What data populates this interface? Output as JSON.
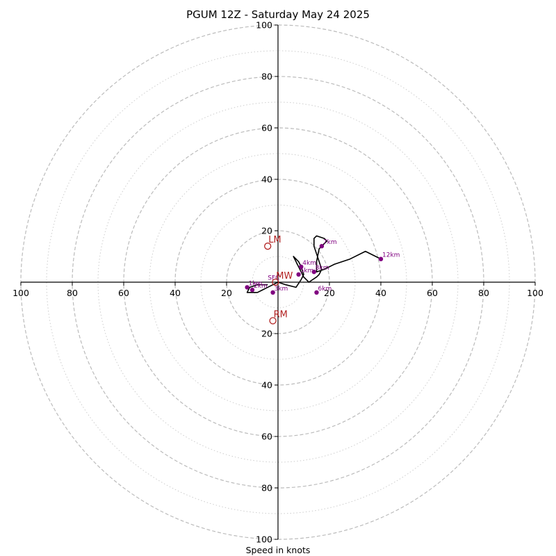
{
  "chart_data": {
    "type": "line",
    "title": "PGUM 12Z - Saturday May 24 2025",
    "xlabel": "Speed in knots",
    "axis_range": [
      -100,
      100
    ],
    "ring_major": [
      20,
      40,
      60,
      80,
      100
    ],
    "ring_minor": [
      10,
      30,
      50,
      70,
      90
    ],
    "tick_labels_x": [
      "100",
      "80",
      "60",
      "40",
      "20",
      "20",
      "40",
      "60",
      "80",
      "100"
    ],
    "tick_values_x": [
      -100,
      -80,
      -60,
      -40,
      -20,
      20,
      40,
      60,
      80,
      100
    ],
    "tick_labels_y": [
      "100",
      "80",
      "60",
      "40",
      "20",
      "20",
      "40",
      "60",
      "80",
      "100"
    ],
    "tick_values_y": [
      100,
      80,
      60,
      40,
      20,
      -20,
      -40,
      -60,
      -80,
      -100
    ],
    "hodograph": {
      "u": [
        -4,
        -8,
        -11,
        -12,
        -8,
        -6,
        -2,
        0,
        3,
        7,
        9,
        10,
        9,
        8,
        7,
        6,
        7,
        8,
        9,
        10,
        12,
        15,
        16,
        17,
        16,
        15,
        14,
        14,
        15,
        18,
        19,
        16,
        15,
        15,
        18,
        22,
        28,
        34,
        38,
        40
      ],
      "v": [
        -1,
        -1,
        -2,
        -4,
        -4,
        -3,
        -1,
        0,
        -1,
        -2,
        1,
        3,
        6,
        8,
        9,
        10,
        8,
        6,
        4,
        2,
        0,
        2,
        3,
        5,
        8,
        11,
        14,
        17,
        18,
        17,
        16,
        13,
        8,
        4,
        5,
        7,
        9,
        12,
        10,
        9
      ]
    },
    "height_points": [
      {
        "label": "1km",
        "u": -12,
        "v": -2
      },
      {
        "label": "2km",
        "u": -10,
        "v": -3
      },
      {
        "label": "3km",
        "u": -2,
        "v": -4
      },
      {
        "label": "4km",
        "u": 9,
        "v": 6
      },
      {
        "label": "5km",
        "u": 8,
        "v": 3
      },
      {
        "label": "6km",
        "u": 15,
        "v": -4
      },
      {
        "label": "7km",
        "u": 17,
        "v": 14
      },
      {
        "label": "8km",
        "u": 14,
        "v": 4
      },
      {
        "label": "12km",
        "u": 40,
        "v": 9
      }
    ],
    "motion_markers": [
      {
        "label": "LM",
        "u": -4,
        "v": 14
      },
      {
        "label": "MW",
        "u": -1,
        "v": 0
      },
      {
        "label": "RM",
        "u": -2,
        "v": -15
      }
    ],
    "sfc_label": "SFC",
    "colors": {
      "hodograph": "#000000",
      "height_points": "#800080",
      "motion": "#b22222",
      "rings": "#bbbbbb"
    }
  }
}
